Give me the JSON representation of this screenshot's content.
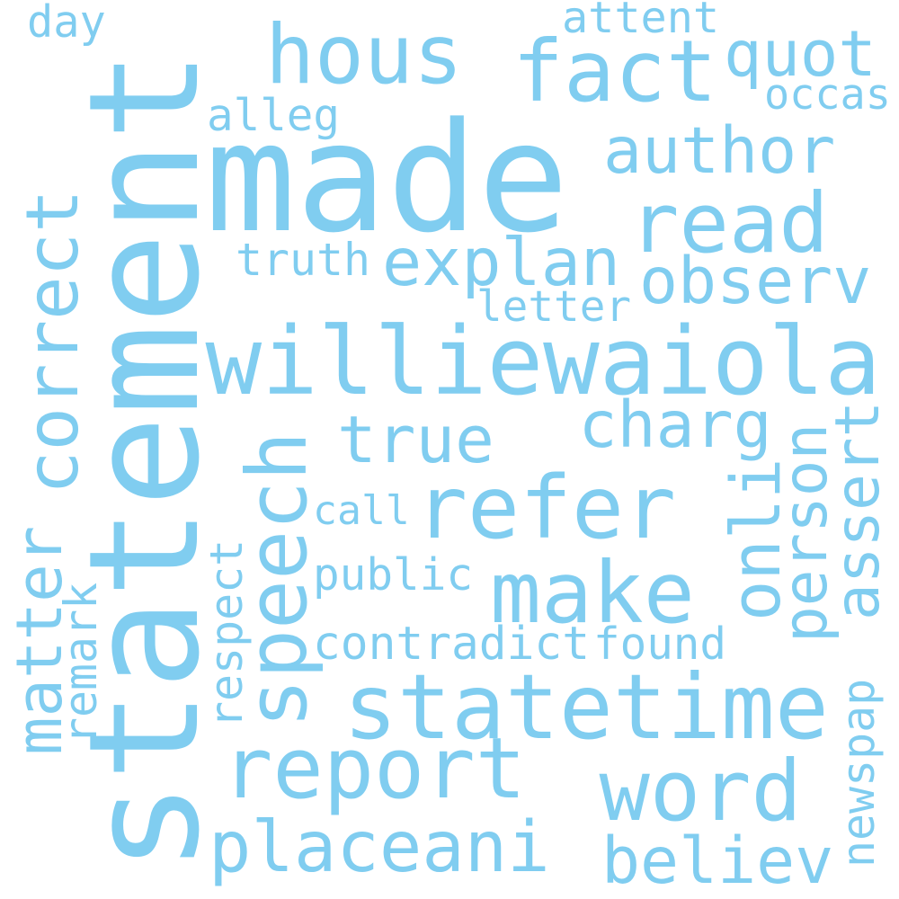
{
  "word_color": "#80cdf0",
  "background": "#ffffff",
  "words": [
    {
      "text": "statement",
      "vertical": true
    },
    {
      "text": "made",
      "vertical": false
    },
    {
      "text": "williewaiola",
      "vertical": false
    },
    {
      "text": "statetime",
      "vertical": false
    },
    {
      "text": "refer",
      "vertical": false
    },
    {
      "text": "report",
      "vertical": false
    },
    {
      "text": "fact",
      "vertical": false
    },
    {
      "text": "hous",
      "vertical": false
    },
    {
      "text": "read",
      "vertical": false
    },
    {
      "text": "word",
      "vertical": false
    },
    {
      "text": "make",
      "vertical": false
    },
    {
      "text": "correct",
      "vertical": true
    },
    {
      "text": "speech",
      "vertical": true
    },
    {
      "text": "placeani",
      "vertical": false
    },
    {
      "text": "onli",
      "vertical": true
    },
    {
      "text": "explan",
      "vertical": false
    },
    {
      "text": "observ",
      "vertical": false
    },
    {
      "text": "author",
      "vertical": false
    },
    {
      "text": "charg",
      "vertical": false
    },
    {
      "text": "true",
      "vertical": false
    },
    {
      "text": "believ",
      "vertical": false
    },
    {
      "text": "quot",
      "vertical": false
    },
    {
      "text": "matter",
      "vertical": true
    },
    {
      "text": "person",
      "vertical": true
    },
    {
      "text": "assert",
      "vertical": true
    },
    {
      "text": "contradict",
      "vertical": false
    },
    {
      "text": "found",
      "vertical": false
    },
    {
      "text": "public",
      "vertical": false
    },
    {
      "text": "truth",
      "vertical": false
    },
    {
      "text": "attent",
      "vertical": false
    },
    {
      "text": "alleg",
      "vertical": false
    },
    {
      "text": "occas",
      "vertical": false
    },
    {
      "text": "letter",
      "vertical": false
    },
    {
      "text": "call",
      "vertical": false
    },
    {
      "text": "day",
      "vertical": false
    },
    {
      "text": "respect",
      "vertical": true
    },
    {
      "text": "remark",
      "vertical": true
    },
    {
      "text": "newspap",
      "vertical": true
    }
  ]
}
